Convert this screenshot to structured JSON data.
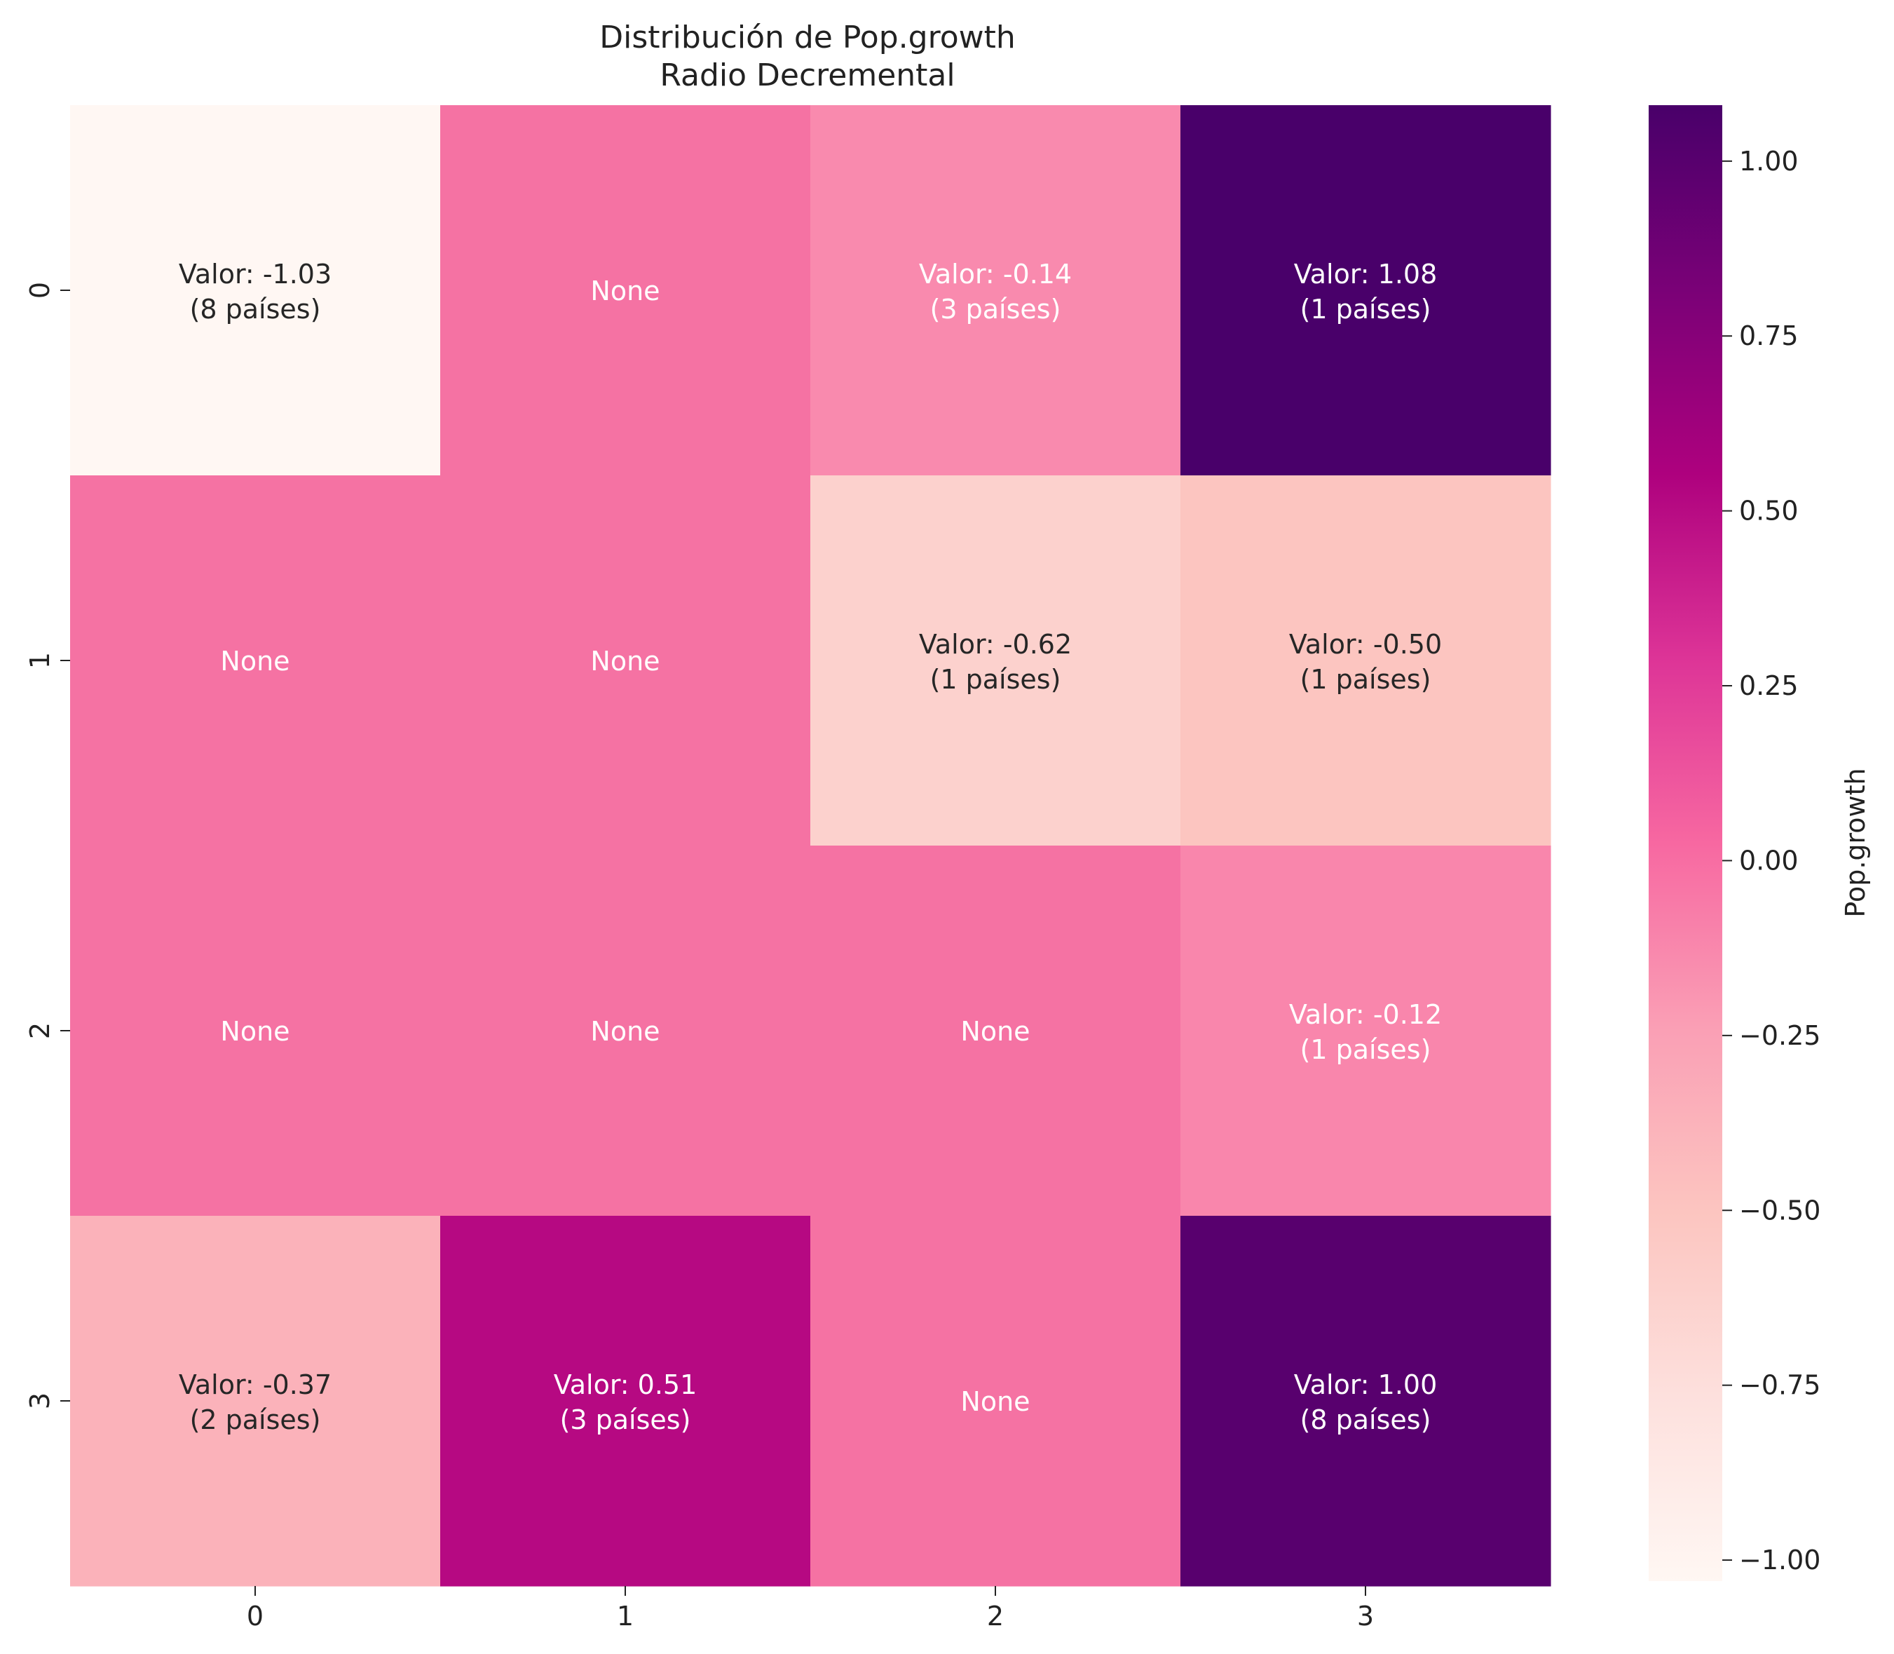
{
  "chart_data": {
    "type": "heatmap",
    "title": "Distribución de Pop.growth",
    "subtitle": "Radio Decremental",
    "x_ticks": [
      "0",
      "1",
      "2",
      "3"
    ],
    "y_ticks": [
      "0",
      "1",
      "2",
      "3"
    ],
    "cell_label_prefix": "Valor: ",
    "count_suffix": " países",
    "none_label": "None",
    "cells": [
      [
        {
          "value": -1.03,
          "count": 8
        },
        {
          "value": null,
          "count": null
        },
        {
          "value": -0.14,
          "count": 3
        },
        {
          "value": 1.08,
          "count": 1
        }
      ],
      [
        {
          "value": null,
          "count": null
        },
        {
          "value": null,
          "count": null
        },
        {
          "value": -0.62,
          "count": 1
        },
        {
          "value": -0.5,
          "count": 1
        }
      ],
      [
        {
          "value": null,
          "count": null
        },
        {
          "value": null,
          "count": null
        },
        {
          "value": null,
          "count": null
        },
        {
          "value": -0.12,
          "count": 1
        }
      ],
      [
        {
          "value": -0.37,
          "count": 2
        },
        {
          "value": 0.51,
          "count": 3
        },
        {
          "value": null,
          "count": null
        },
        {
          "value": 1.0,
          "count": 8
        }
      ]
    ],
    "none_fill": "#f572a3",
    "colorbar": {
      "label": "Pop.growth",
      "range": [
        -1.03,
        1.08
      ],
      "ticks": [
        -1.0,
        -0.75,
        -0.5,
        -0.25,
        0.0,
        0.25,
        0.5,
        0.75,
        1.0
      ],
      "tick_labels": [
        "−1.00",
        "−0.75",
        "−0.50",
        "−0.25",
        "0.00",
        "0.25",
        "0.50",
        "0.75",
        "1.00"
      ]
    },
    "colormap": "RdPu",
    "colormap_stops": [
      "#fff7f3",
      "#fde0dd",
      "#fcc5c0",
      "#fa9fb5",
      "#f768a1",
      "#dd3497",
      "#ae017e",
      "#7a0177",
      "#49006a"
    ],
    "grid": false
  }
}
